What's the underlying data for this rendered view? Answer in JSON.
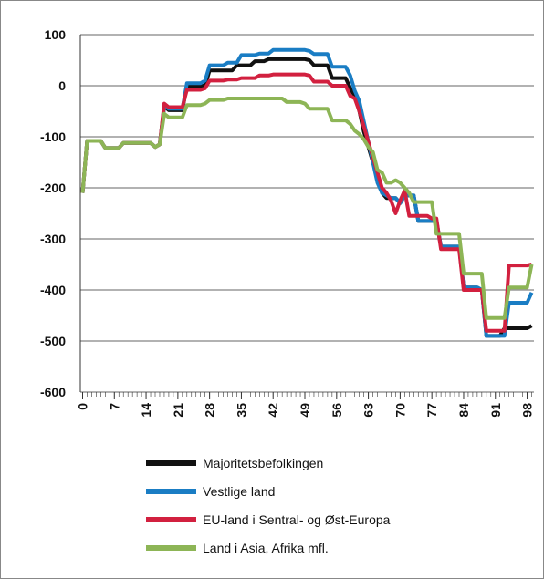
{
  "chart_data": {
    "type": "line",
    "x": [
      0,
      1,
      2,
      3,
      4,
      5,
      6,
      7,
      8,
      9,
      10,
      11,
      12,
      13,
      14,
      15,
      16,
      17,
      18,
      19,
      20,
      21,
      22,
      23,
      24,
      25,
      26,
      27,
      28,
      29,
      30,
      31,
      32,
      33,
      34,
      35,
      36,
      37,
      38,
      39,
      40,
      41,
      42,
      43,
      44,
      45,
      46,
      47,
      48,
      49,
      50,
      51,
      52,
      53,
      54,
      55,
      56,
      57,
      58,
      59,
      60,
      61,
      62,
      63,
      64,
      65,
      66,
      67,
      68,
      69,
      70,
      71,
      72,
      73,
      74,
      75,
      76,
      77,
      78,
      79,
      80,
      81,
      82,
      83,
      84,
      85,
      86,
      87,
      88,
      89,
      90,
      91,
      92,
      93,
      94,
      95,
      96,
      97,
      98,
      99
    ],
    "series": [
      {
        "name": "Majoritetsbefolkingen",
        "color": "#111111",
        "values": [
          -210,
          -108,
          -108,
          -108,
          -108,
          -122,
          -122,
          -122,
          -122,
          -112,
          -112,
          -112,
          -112,
          -112,
          -112,
          -112,
          -120,
          -115,
          -40,
          -48,
          -48,
          -48,
          -48,
          0,
          0,
          0,
          0,
          0,
          30,
          30,
          30,
          30,
          30,
          30,
          40,
          40,
          40,
          40,
          48,
          48,
          48,
          52,
          52,
          52,
          52,
          52,
          52,
          52,
          52,
          52,
          50,
          40,
          40,
          40,
          40,
          15,
          15,
          15,
          15,
          -5,
          -20,
          -50,
          -90,
          -120,
          -150,
          -180,
          -210,
          -220,
          -220,
          -220,
          -230,
          -215,
          -215,
          -215,
          -265,
          -265,
          -265,
          -265,
          -265,
          -315,
          -315,
          -315,
          -315,
          -315,
          -395,
          -395,
          -395,
          -395,
          -400,
          -490,
          -490,
          -490,
          -490,
          -475,
          -475,
          -475,
          -475,
          -475,
          -475,
          -470
        ]
      },
      {
        "name": "Vestlige land",
        "color": "#1a7dc4",
        "values": [
          -210,
          -108,
          -108,
          -108,
          -108,
          -122,
          -122,
          -122,
          -122,
          -112,
          -112,
          -112,
          -112,
          -112,
          -112,
          -112,
          -120,
          -115,
          -40,
          -45,
          -45,
          -45,
          -45,
          5,
          5,
          5,
          5,
          10,
          40,
          40,
          40,
          40,
          45,
          45,
          45,
          60,
          60,
          60,
          60,
          63,
          63,
          63,
          70,
          70,
          70,
          70,
          70,
          70,
          70,
          70,
          68,
          62,
          62,
          62,
          62,
          37,
          37,
          37,
          37,
          20,
          -10,
          -30,
          -70,
          -110,
          -150,
          -190,
          -210,
          -215,
          -220,
          -220,
          -230,
          -215,
          -215,
          -215,
          -265,
          -265,
          -265,
          -265,
          -265,
          -315,
          -315,
          -315,
          -315,
          -315,
          -395,
          -395,
          -395,
          -395,
          -400,
          -490,
          -490,
          -490,
          -490,
          -490,
          -425,
          -425,
          -425,
          -425,
          -425,
          -405
        ]
      },
      {
        "name": "EU-land i Sentral- og Øst-Europa",
        "color": "#d2203f",
        "values": [
          -210,
          -108,
          -108,
          -108,
          -108,
          -122,
          -122,
          -122,
          -122,
          -112,
          -112,
          -112,
          -112,
          -112,
          -112,
          -112,
          -120,
          -115,
          -35,
          -42,
          -42,
          -42,
          -42,
          -8,
          -8,
          -8,
          -8,
          -5,
          10,
          10,
          10,
          10,
          12,
          12,
          12,
          15,
          15,
          15,
          15,
          20,
          20,
          20,
          22,
          22,
          22,
          22,
          22,
          22,
          22,
          22,
          20,
          8,
          8,
          8,
          8,
          0,
          0,
          0,
          0,
          -20,
          -25,
          -50,
          -80,
          -110,
          -140,
          -170,
          -200,
          -210,
          -225,
          -250,
          -225,
          -205,
          -255,
          -255,
          -255,
          -255,
          -255,
          -260,
          -260,
          -320,
          -320,
          -320,
          -320,
          -320,
          -400,
          -400,
          -400,
          -400,
          -400,
          -480,
          -480,
          -480,
          -480,
          -480,
          -352,
          -352,
          -352,
          -352,
          -352,
          -350
        ]
      },
      {
        "name": "Land i Asia, Afrika mfl.",
        "color": "#8db556",
        "values": [
          -210,
          -108,
          -108,
          -108,
          -108,
          -122,
          -122,
          -122,
          -122,
          -112,
          -112,
          -112,
          -112,
          -112,
          -112,
          -112,
          -120,
          -115,
          -55,
          -62,
          -62,
          -62,
          -62,
          -38,
          -38,
          -38,
          -38,
          -35,
          -28,
          -28,
          -28,
          -28,
          -25,
          -25,
          -25,
          -25,
          -25,
          -25,
          -25,
          -25,
          -25,
          -25,
          -25,
          -25,
          -25,
          -32,
          -32,
          -32,
          -32,
          -35,
          -45,
          -45,
          -45,
          -45,
          -45,
          -68,
          -68,
          -68,
          -68,
          -75,
          -88,
          -95,
          -105,
          -120,
          -130,
          -165,
          -170,
          -190,
          -190,
          -185,
          -190,
          -200,
          -210,
          -228,
          -228,
          -228,
          -228,
          -228,
          -290,
          -290,
          -290,
          -290,
          -290,
          -290,
          -368,
          -368,
          -368,
          -368,
          -368,
          -455,
          -455,
          -455,
          -455,
          -455,
          -395,
          -395,
          -395,
          -395,
          -395,
          -350
        ]
      }
    ],
    "xlim": [
      -0.5,
      99.5
    ],
    "xticks": [
      0,
      7,
      14,
      21,
      28,
      35,
      42,
      49,
      56,
      63,
      70,
      77,
      84,
      91,
      98
    ],
    "ylim": [
      -600,
      100
    ],
    "yticks": [
      -600,
      -500,
      -400,
      -300,
      -200,
      -100,
      0,
      100
    ],
    "grid": true
  }
}
